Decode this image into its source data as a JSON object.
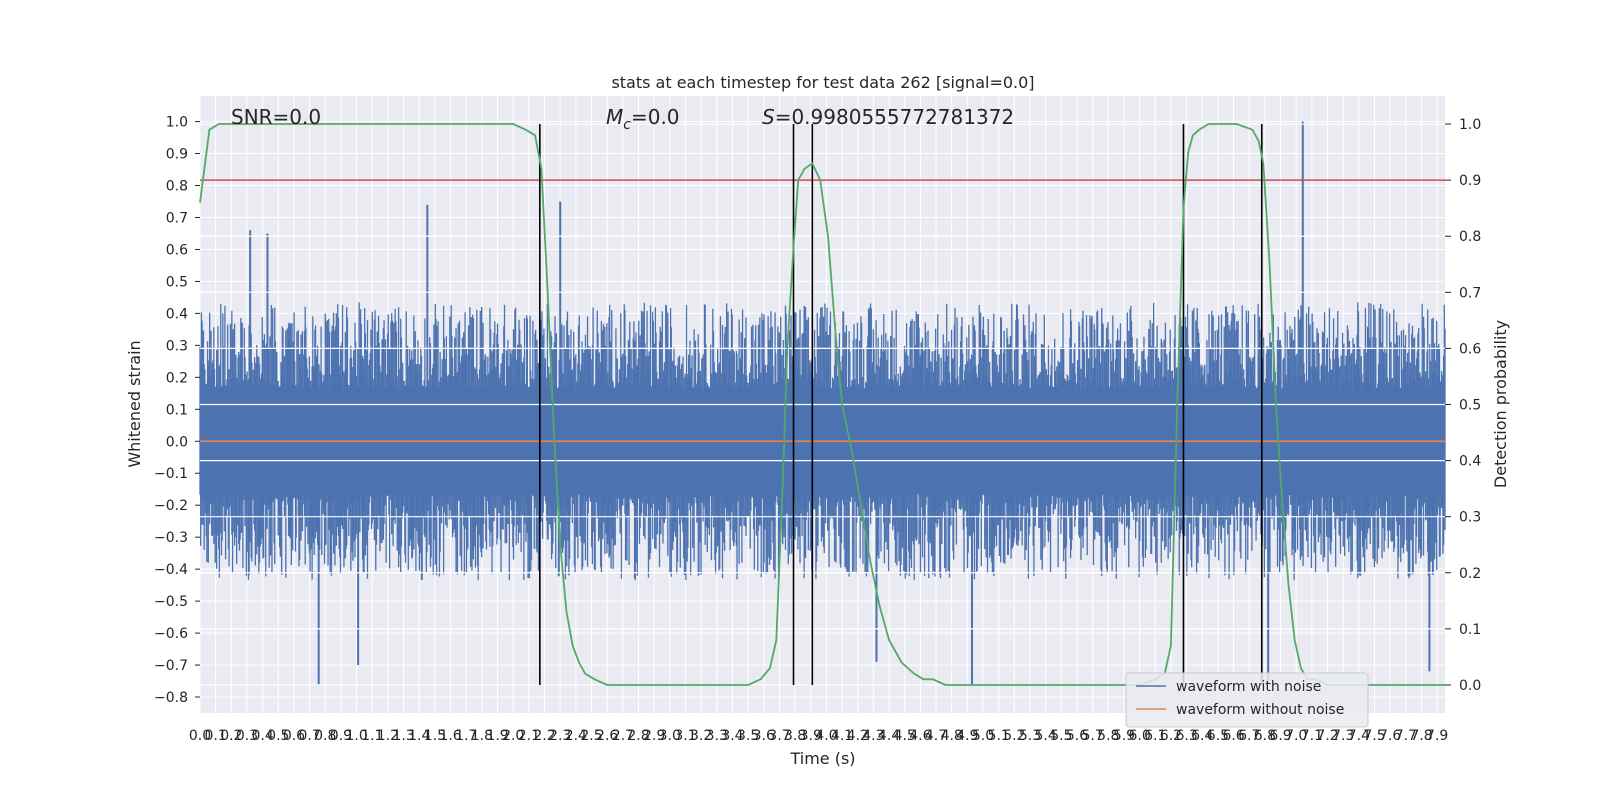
{
  "chart_data": {
    "type": "line",
    "title": "stats at each timestep for test data 262 [signal=0.0]",
    "xlabel": "Time (s)",
    "ylabel_left": "Whitened strain",
    "ylabel_right": "Detection probability",
    "xlim": [
      0.0,
      7.95
    ],
    "ylim_left": [
      -0.85,
      1.08
    ],
    "ylim_right": [
      -0.05,
      1.05
    ],
    "grid": true,
    "x_ticks": [
      0.0,
      0.1,
      0.2,
      0.3,
      0.4,
      0.5,
      0.6,
      0.7,
      0.8,
      0.9,
      1.0,
      1.1,
      1.2,
      1.3,
      1.4,
      1.5,
      1.6,
      1.7,
      1.8,
      1.9,
      2.0,
      2.1,
      2.2,
      2.3,
      2.4,
      2.5,
      2.6,
      2.7,
      2.8,
      2.9,
      3.0,
      3.1,
      3.2,
      3.3,
      3.4,
      3.5,
      3.6,
      3.7,
      3.8,
      3.9,
      4.0,
      4.1,
      4.2,
      4.3,
      4.4,
      4.5,
      4.6,
      4.7,
      4.8,
      4.9,
      5.0,
      5.1,
      5.2,
      5.3,
      5.4,
      5.5,
      5.6,
      5.7,
      5.8,
      5.9,
      6.0,
      6.1,
      6.2,
      6.3,
      6.4,
      6.5,
      6.6,
      6.7,
      6.8,
      6.9,
      7.0,
      7.1,
      7.2,
      7.3,
      7.4,
      7.5,
      7.6,
      7.7,
      7.8,
      7.9
    ],
    "x_tick_labels": [
      "0.0",
      "0.1",
      "0.2",
      "0.3",
      "0.4",
      "0.5",
      "0.6",
      "0.7",
      "0.8",
      "0.9",
      "1.0",
      "1.1",
      "1.2",
      "1.3",
      "1.4",
      "1.5",
      "1.6",
      "1.7",
      "1.8",
      "1.9",
      "2.0",
      "2.1",
      "2.2",
      "2.3",
      "2.4",
      "2.5",
      "2.6",
      "2.7",
      "2.8",
      "2.9",
      "3.0",
      "3.1",
      "3.2",
      "3.3",
      "3.4",
      "3.5",
      "3.6",
      "3.7",
      "3.8",
      "3.9",
      "4.0",
      "4.1",
      "4.2",
      "4.3",
      "4.4",
      "4.5",
      "4.6",
      "4.7",
      "4.8",
      "4.9",
      "5.0",
      "5.1",
      "5.2",
      "5.3",
      "5.4",
      "5.5",
      "5.6",
      "5.7",
      "5.8",
      "5.9",
      "6.0",
      "6.1",
      "6.2",
      "6.3",
      "6.4",
      "6.5",
      "6.6",
      "6.7",
      "6.8",
      "6.9",
      "7.0",
      "7.1",
      "7.2",
      "7.3",
      "7.4",
      "7.5",
      "7.6",
      "7.7",
      "7.8",
      "7.9"
    ],
    "y_ticks_left": [
      -0.8,
      -0.7,
      -0.6,
      -0.5,
      -0.4,
      -0.3,
      -0.2,
      -0.1,
      0.0,
      0.1,
      0.2,
      0.3,
      0.4,
      0.5,
      0.6,
      0.7,
      0.8,
      0.9,
      1.0
    ],
    "y_tick_labels_left": [
      "−0.8",
      "−0.7",
      "−0.6",
      "−0.5",
      "−0.4",
      "−0.3",
      "−0.2",
      "−0.1",
      "0.0",
      "0.1",
      "0.2",
      "0.3",
      "0.4",
      "0.5",
      "0.6",
      "0.7",
      "0.8",
      "0.9",
      "1.0"
    ],
    "y_ticks_right": [
      0.0,
      0.1,
      0.2,
      0.3,
      0.4,
      0.5,
      0.6,
      0.7,
      0.8,
      0.9,
      1.0
    ],
    "y_tick_labels_right": [
      "0.0",
      "0.1",
      "0.2",
      "0.3",
      "0.4",
      "0.5",
      "0.6",
      "0.7",
      "0.8",
      "0.9",
      "1.0"
    ],
    "annotations": {
      "snr": "SNR=0.0",
      "mc_symbol": "M",
      "mc_subscript": "c",
      "mc_value": "=0.0",
      "s_symbol": "S",
      "s_value": "=0.9980555772781372"
    },
    "threshold": {
      "axis": "right",
      "value": 0.9,
      "color": "#c44e52"
    },
    "vertical_markers_x": [
      2.17,
      3.79,
      3.91,
      6.28,
      6.78
    ],
    "series": [
      {
        "name": "waveform with noise",
        "axis": "left",
        "color": "#4c72b0",
        "noise_envelope": {
          "x_start": 0.0,
          "x_end": 7.95,
          "upper_typical": 0.3,
          "lower_typical": -0.3,
          "peaks": [
            [
              7.04,
              1.0
            ],
            [
              1.45,
              0.74
            ],
            [
              2.3,
              0.75
            ],
            [
              0.32,
              0.66
            ],
            [
              0.43,
              0.65
            ],
            [
              0.76,
              -0.76
            ],
            [
              1.01,
              -0.7
            ],
            [
              4.93,
              -0.76
            ],
            [
              4.32,
              -0.69
            ],
            [
              6.82,
              -0.75
            ],
            [
              7.85,
              -0.72
            ]
          ]
        }
      },
      {
        "name": "waveform without noise",
        "axis": "left",
        "color": "#dd8452",
        "y_constant": 0.0
      },
      {
        "name": "detection probability",
        "axis": "right",
        "color": "#55a868",
        "x": [
          0.0,
          0.06,
          0.12,
          0.3,
          0.6,
          1.0,
          1.4,
          1.8,
          2.0,
          2.08,
          2.14,
          2.18,
          2.22,
          2.26,
          2.3,
          2.34,
          2.38,
          2.42,
          2.46,
          2.52,
          2.6,
          2.8,
          3.2,
          3.5,
          3.58,
          3.64,
          3.68,
          3.72,
          3.75,
          3.79,
          3.82,
          3.86,
          3.91,
          3.96,
          4.01,
          4.06,
          4.1,
          4.16,
          4.22,
          4.28,
          4.34,
          4.4,
          4.48,
          4.56,
          4.62,
          4.68,
          4.76,
          4.9,
          5.2,
          5.6,
          6.0,
          6.1,
          6.16,
          6.2,
          6.24,
          6.28,
          6.31,
          6.34,
          6.38,
          6.44,
          6.52,
          6.62,
          6.72,
          6.76,
          6.79,
          6.83,
          6.87,
          6.91,
          6.95,
          6.99,
          7.03,
          7.07,
          7.12,
          7.2,
          7.4,
          7.7,
          7.95
        ],
        "y": [
          0.86,
          0.99,
          1.0,
          1.0,
          1.0,
          1.0,
          1.0,
          1.0,
          1.0,
          0.99,
          0.98,
          0.92,
          0.7,
          0.45,
          0.25,
          0.13,
          0.07,
          0.04,
          0.02,
          0.01,
          0.0,
          0.0,
          0.0,
          0.0,
          0.01,
          0.03,
          0.08,
          0.35,
          0.6,
          0.78,
          0.9,
          0.92,
          0.93,
          0.9,
          0.8,
          0.62,
          0.5,
          0.42,
          0.32,
          0.22,
          0.14,
          0.08,
          0.04,
          0.02,
          0.01,
          0.01,
          0.0,
          0.0,
          0.0,
          0.0,
          0.0,
          0.01,
          0.02,
          0.07,
          0.5,
          0.85,
          0.95,
          0.98,
          0.99,
          1.0,
          1.0,
          1.0,
          0.99,
          0.97,
          0.93,
          0.75,
          0.5,
          0.33,
          0.18,
          0.08,
          0.03,
          0.01,
          0.01,
          0.0,
          0.0,
          0.0,
          0.0
        ]
      }
    ],
    "legend": {
      "placement": "lower-right",
      "entries": [
        "waveform with noise",
        "waveform without noise"
      ]
    }
  }
}
